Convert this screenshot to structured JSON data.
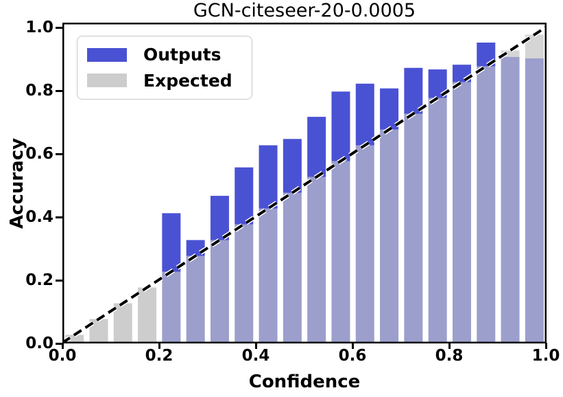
{
  "figure": {
    "title": "GCN-citeseer-20-0.0005",
    "xlabel": "Confidence",
    "ylabel": "Accuracy"
  },
  "legend": {
    "position": "upper-left",
    "entries": [
      {
        "label": "Outputs",
        "color": "#4a52d4"
      },
      {
        "label": "Expected",
        "color": "#cdcdcd"
      }
    ]
  },
  "colors": {
    "outputs_blue": "#4a52d4",
    "expected_gray": "#cdcdcd",
    "overlap_lavender": "#9c9fcc",
    "expected_tip_gray": "#d5d5d5",
    "diagonal_black": "#000000",
    "spine_black": "#000000",
    "background": "#ffffff"
  },
  "chart_data": {
    "type": "bar",
    "title": "GCN-citeseer-20-0.0005",
    "xlabel": "Confidence",
    "ylabel": "Accuracy",
    "xlim": [
      0.0,
      1.0
    ],
    "ylim": [
      0.0,
      1.0
    ],
    "grid": false,
    "legend_position": "upper left",
    "bin_width": 0.05,
    "xtick_labels": [
      "0.0",
      "0.2",
      "0.4",
      "0.6",
      "0.8",
      "1.0"
    ],
    "xtick_values": [
      0.0,
      0.2,
      0.4,
      0.6,
      0.8,
      1.0
    ],
    "ytick_labels": [
      "0.0",
      "0.2",
      "0.4",
      "0.6",
      "0.8",
      "1.0"
    ],
    "ytick_values": [
      0.0,
      0.2,
      0.4,
      0.6,
      0.8,
      1.0
    ],
    "categories": [
      0.025,
      0.075,
      0.125,
      0.175,
      0.225,
      0.275,
      0.325,
      0.375,
      0.425,
      0.475,
      0.525,
      0.575,
      0.625,
      0.675,
      0.725,
      0.775,
      0.825,
      0.875,
      0.925,
      0.975
    ],
    "series": [
      {
        "name": "Outputs",
        "color": "#4a52d4",
        "values": [
          0,
          0,
          0,
          0,
          0.41,
          0.325,
          0.465,
          0.555,
          0.625,
          0.645,
          0.715,
          0.795,
          0.82,
          0.805,
          0.87,
          0.865,
          0.88,
          0.95,
          0.905,
          0.9
        ]
      },
      {
        "name": "Expected",
        "color": "#cdcdcd",
        "values": [
          0.025,
          0.075,
          0.125,
          0.175,
          0.225,
          0.275,
          0.325,
          0.375,
          0.425,
          0.475,
          0.525,
          0.575,
          0.625,
          0.675,
          0.725,
          0.775,
          0.825,
          0.875,
          0.925,
          0.975
        ]
      }
    ],
    "diagonal_line": {
      "from": [
        0,
        0
      ],
      "to": [
        1,
        1
      ],
      "style": "dashed",
      "color": "#000000"
    }
  }
}
